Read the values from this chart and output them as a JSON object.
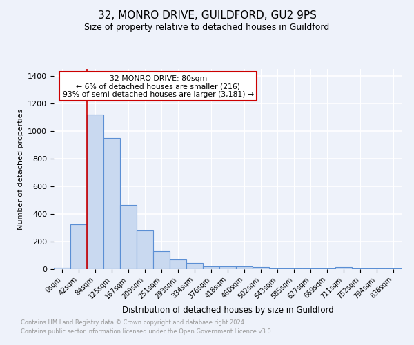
{
  "title": "32, MONRO DRIVE, GUILDFORD, GU2 9PS",
  "subtitle": "Size of property relative to detached houses in Guildford",
  "xlabel": "Distribution of detached houses by size in Guildford",
  "ylabel": "Number of detached properties",
  "footnote1": "Contains HM Land Registry data © Crown copyright and database right 2024.",
  "footnote2": "Contains public sector information licensed under the Open Government Licence v3.0.",
  "bin_labels": [
    "0sqm",
    "42sqm",
    "84sqm",
    "125sqm",
    "167sqm",
    "209sqm",
    "251sqm",
    "293sqm",
    "334sqm",
    "376sqm",
    "418sqm",
    "460sqm",
    "502sqm",
    "543sqm",
    "585sqm",
    "627sqm",
    "669sqm",
    "711sqm",
    "752sqm",
    "794sqm",
    "836sqm"
  ],
  "bar_heights": [
    10,
    325,
    1120,
    950,
    465,
    280,
    130,
    68,
    45,
    18,
    22,
    18,
    15,
    3,
    3,
    3,
    3,
    15,
    3,
    3,
    3
  ],
  "bar_color": "#c9d9f0",
  "bar_edge_color": "#5b8fd4",
  "red_line_x": 2,
  "annotation_title": "32 MONRO DRIVE: 80sqm",
  "annotation_line1": "← 6% of detached houses are smaller (216)",
  "annotation_line2": "93% of semi-detached houses are larger (3,181) →",
  "ylim": [
    0,
    1450
  ],
  "yticks": [
    0,
    200,
    400,
    600,
    800,
    1000,
    1200,
    1400
  ],
  "bg_color": "#eef2fa",
  "grid_color": "#ffffff",
  "annotation_box_color": "#ffffff",
  "annotation_box_edge": "#cc0000",
  "red_line_color": "#cc0000",
  "title_fontsize": 11,
  "subtitle_fontsize": 9,
  "footnote_color": "#999999"
}
